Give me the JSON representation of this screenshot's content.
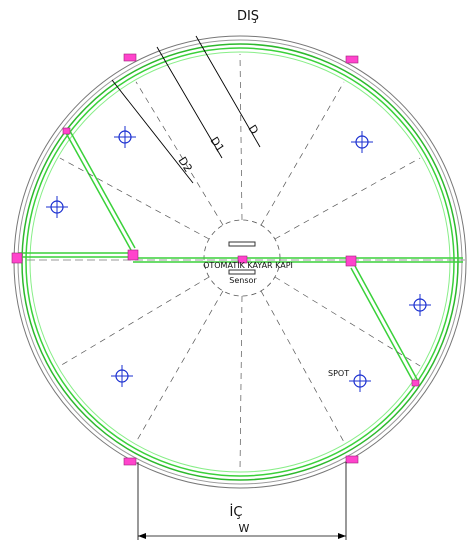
{
  "labels": {
    "top": "DIŞ",
    "d": "D",
    "d1": "D1",
    "d2": "D2",
    "door": "OTOMATİK KAYAR KAPI",
    "sensor": "Sensor",
    "spot": "SPOT",
    "bottom": "İÇ",
    "width": "W"
  }
}
